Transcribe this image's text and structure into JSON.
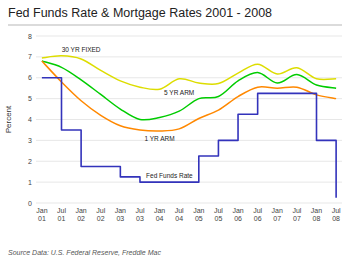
{
  "chart_data": {
    "type": "line",
    "title": "Fed Funds Rate & Mortgage Rates 2001 - 2008",
    "y_label": "Percent",
    "source": "Source Data: U.S. Federal Reserve, Freddie Mac",
    "categories": [
      "Jan\n01",
      "Jul\n01",
      "Jan\n02",
      "Jul\n02",
      "Jan\n03",
      "Jul\n03",
      "Jan\n04",
      "Jul\n04",
      "Jan\n05",
      "Jul\n05",
      "Jan\n06",
      "Jul\n06",
      "Jan\n07",
      "Jul\n07",
      "Jan\n08",
      "Jul\n08"
    ],
    "series": [
      {
        "name": "30 YR FIXED",
        "type": "line",
        "color": "#dddd00",
        "values": [
          6.95,
          7.05,
          6.9,
          6.35,
          5.85,
          5.55,
          5.45,
          5.95,
          5.75,
          5.72,
          6.22,
          6.65,
          6.18,
          6.48,
          5.95,
          5.95
        ]
      },
      {
        "name": "5 YR ARM",
        "type": "line",
        "color": "#00cc00",
        "values": [
          6.8,
          6.5,
          5.9,
          5.2,
          4.5,
          4.0,
          4.1,
          4.4,
          5.0,
          5.1,
          5.85,
          6.25,
          5.75,
          6.15,
          5.65,
          5.5
        ]
      },
      {
        "name": "1 YR ARM",
        "type": "line",
        "color": "#ff8800",
        "values": [
          6.8,
          5.8,
          4.9,
          4.2,
          3.7,
          3.5,
          3.45,
          3.55,
          4.05,
          4.45,
          5.1,
          5.55,
          5.5,
          5.55,
          5.18,
          5.0
        ]
      },
      {
        "name": "Fed Funds Rate",
        "type": "step",
        "color": "#3333bb",
        "values": [
          6.0,
          3.5,
          1.75,
          1.75,
          1.25,
          1.0,
          1.0,
          1.0,
          2.25,
          3.0,
          4.25,
          5.25,
          5.25,
          5.25,
          3.0,
          0.25
        ]
      }
    ],
    "ylim": [
      0,
      8
    ],
    "yticks": [
      0,
      1,
      2,
      3,
      4,
      5,
      6,
      7,
      8
    ],
    "grid": true
  }
}
